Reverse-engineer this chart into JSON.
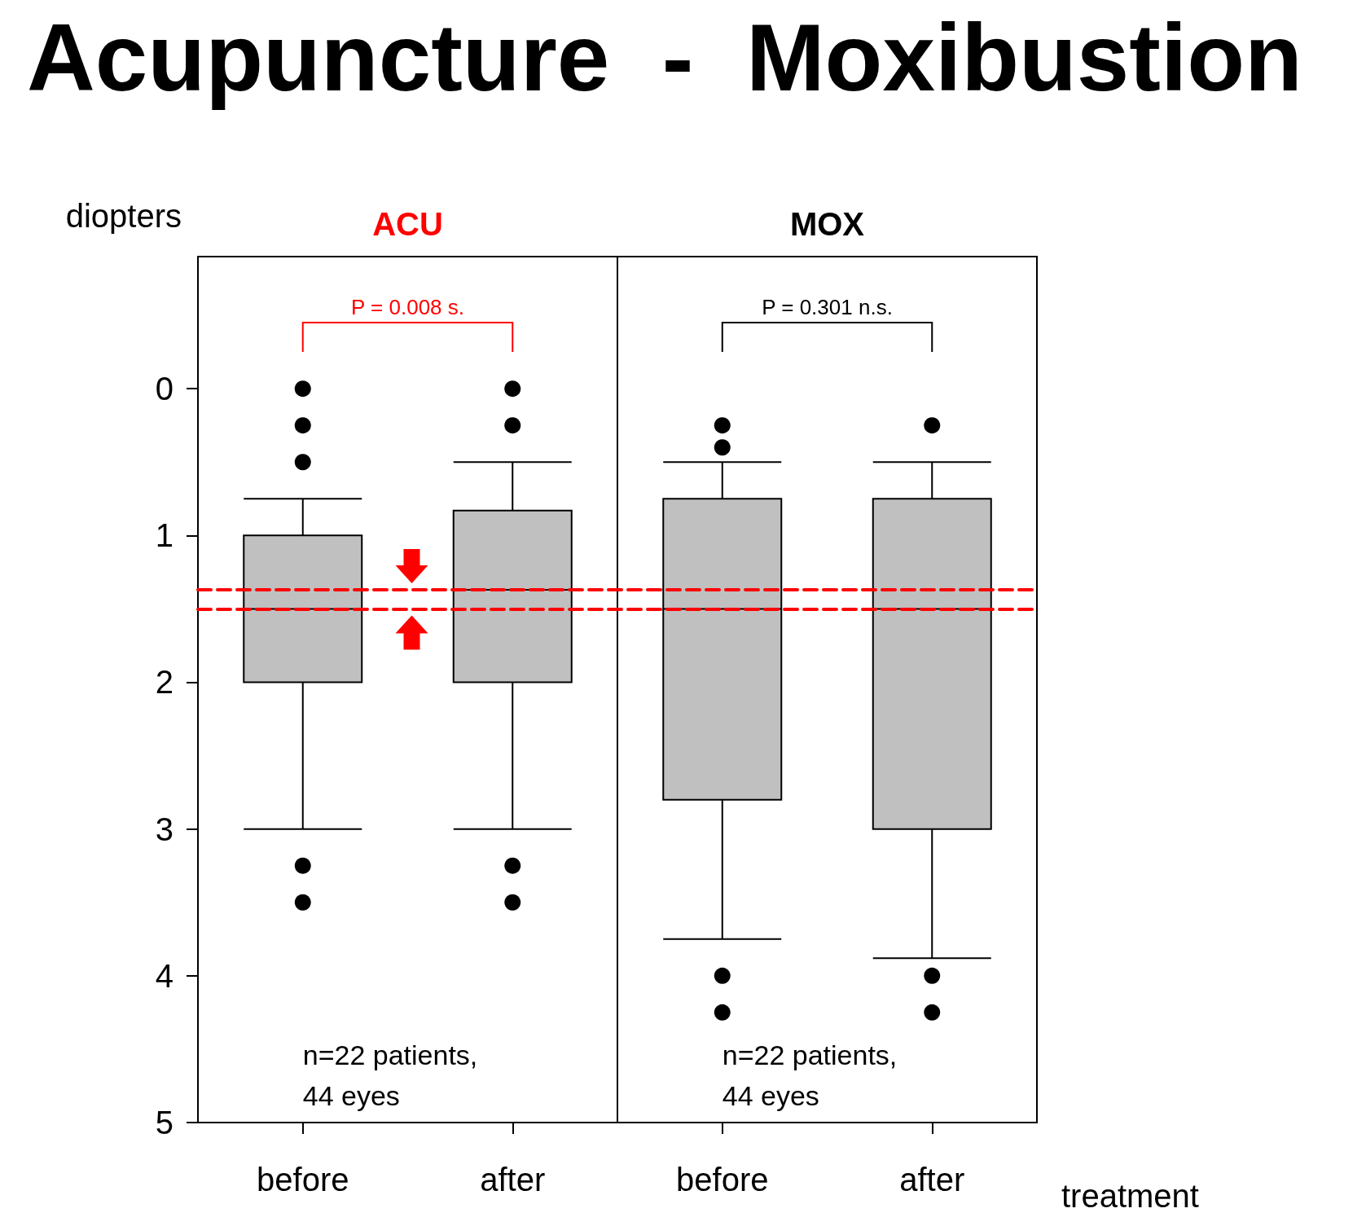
{
  "chart_data": {
    "type": "box",
    "title": "Acupuncture  -  Moxibustion",
    "ylabel": "diopters",
    "xlabel": "treatment",
    "categories": [
      "before",
      "after",
      "before",
      "after"
    ],
    "boxes": [
      {
        "low": 0.75,
        "q1": 1.0,
        "median": 1.5,
        "q3": 2.0,
        "high": 3.0,
        "outliers": [
          0,
          0.25,
          0.5,
          3.25,
          3.5
        ]
      },
      {
        "low": 0.5,
        "q1": 0.83,
        "median": 1.37,
        "q3": 2.0,
        "high": 3.0,
        "outliers": [
          0,
          0.25,
          3.25,
          3.5
        ]
      },
      {
        "low": 0.5,
        "q1": 0.75,
        "median": 1.5,
        "q3": 2.8,
        "high": 3.75,
        "outliers": [
          0.25,
          0.4,
          4.0,
          4.25
        ]
      },
      {
        "low": 0.5,
        "q1": 0.75,
        "median": 1.5,
        "q3": 3.0,
        "high": 3.88,
        "outliers": [
          0.25,
          4.0,
          4.25
        ]
      }
    ],
    "color": "#c0c0c0",
    "ylim": [
      5,
      -0.9
    ],
    "yticks": [
      0,
      1,
      2,
      3,
      4,
      5
    ],
    "ref_lines": [
      {
        "axis": "y",
        "value": 1.5,
        "color": "#ff0000",
        "line_style": "dashed"
      },
      {
        "axis": "y",
        "value": 1.37,
        "color": "#ff0000",
        "line_style": "dashed"
      }
    ],
    "annotations": [
      "ACU",
      "MOX",
      "P = 0.008 s.",
      "P = 0.301 n.s.",
      "n=22 patients,\n44 eyes",
      "n=22 patients,\n44 eyes"
    ],
    "grid": false
  }
}
